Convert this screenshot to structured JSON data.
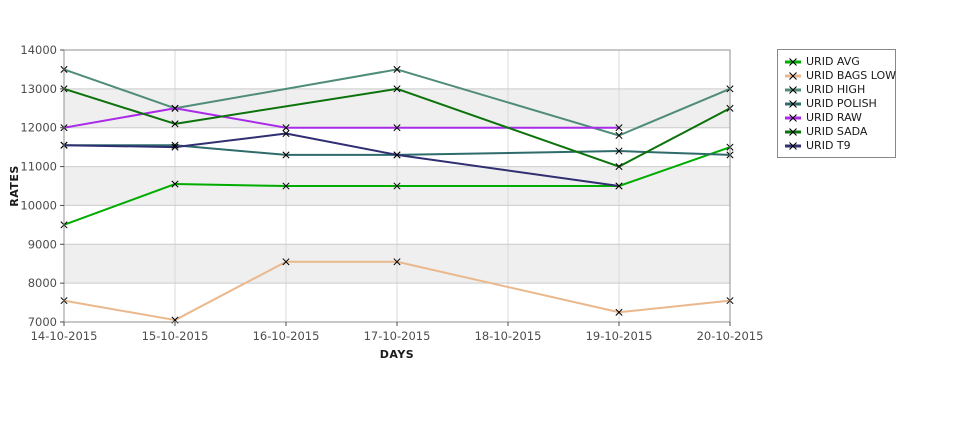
{
  "chart_data": {
    "type": "line",
    "xlabel": "DAYS",
    "ylabel": "RATES",
    "ylim": [
      7000,
      14000
    ],
    "y_tick_step": 1000,
    "y_ticks": [
      7000,
      8000,
      9000,
      10000,
      11000,
      12000,
      13000,
      14000
    ],
    "x_ticks": [
      "14-10-2015",
      "15-10-2015",
      "16-10-2015",
      "17-10-2015",
      "18-10-2015",
      "19-10-2015",
      "20-10-2015"
    ],
    "grid": true,
    "band_colors": [
      "#ffffff",
      "#efefef"
    ],
    "legend_position": "right",
    "marker": "x",
    "marker_color": "#000000",
    "series": [
      {
        "name": "URID AVG",
        "color": "#00ac00",
        "points": [
          [
            "14-10-2015",
            9500
          ],
          [
            "15-10-2015",
            10550
          ],
          [
            "16-10-2015",
            10500
          ],
          [
            "17-10-2015",
            10500
          ],
          [
            "19-10-2015",
            10500
          ],
          [
            "20-10-2015",
            11500
          ]
        ]
      },
      {
        "name": "URID BAGS LOW",
        "color": "#eab88c",
        "points": [
          [
            "14-10-2015",
            7550
          ],
          [
            "15-10-2015",
            7050
          ],
          [
            "16-10-2015",
            8550
          ],
          [
            "17-10-2015",
            8550
          ],
          [
            "19-10-2015",
            7250
          ],
          [
            "20-10-2015",
            7550
          ]
        ]
      },
      {
        "name": "URID HIGH",
        "color": "#4f8c7a",
        "points": [
          [
            "14-10-2015",
            13500
          ],
          [
            "15-10-2015",
            12500
          ],
          [
            "17-10-2015",
            13500
          ],
          [
            "19-10-2015",
            11800
          ],
          [
            "20-10-2015",
            13000
          ]
        ]
      },
      {
        "name": "URID POLISH",
        "color": "#2f6b6b",
        "points": [
          [
            "14-10-2015",
            11550
          ],
          [
            "15-10-2015",
            11550
          ],
          [
            "16-10-2015",
            11300
          ],
          [
            "17-10-2015",
            11300
          ],
          [
            "19-10-2015",
            11400
          ],
          [
            "20-10-2015",
            11300
          ]
        ]
      },
      {
        "name": "URID RAW",
        "color": "#a92be8",
        "points": [
          [
            "14-10-2015",
            12000
          ],
          [
            "15-10-2015",
            12500
          ],
          [
            "16-10-2015",
            12000
          ],
          [
            "17-10-2015",
            12000
          ],
          [
            "19-10-2015",
            12000
          ]
        ]
      },
      {
        "name": "URID SADA",
        "color": "#0c720c",
        "points": [
          [
            "14-10-2015",
            13000
          ],
          [
            "15-10-2015",
            12100
          ],
          [
            "17-10-2015",
            13000
          ],
          [
            "19-10-2015",
            11000
          ],
          [
            "20-10-2015",
            12500
          ]
        ]
      },
      {
        "name": "URID T9",
        "color": "#2f2f72",
        "points": [
          [
            "14-10-2015",
            11550
          ],
          [
            "15-10-2015",
            11500
          ],
          [
            "16-10-2015",
            11850
          ],
          [
            "17-10-2015",
            11300
          ],
          [
            "19-10-2015",
            10500
          ]
        ]
      }
    ]
  }
}
